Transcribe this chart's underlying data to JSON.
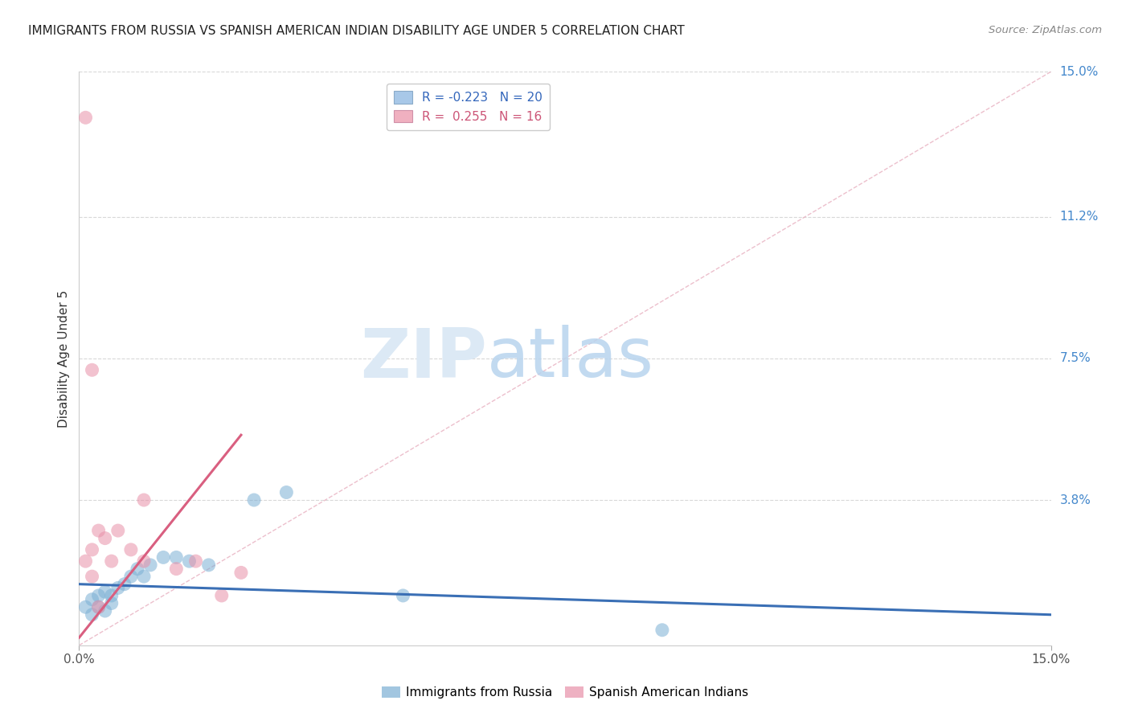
{
  "title": "IMMIGRANTS FROM RUSSIA VS SPANISH AMERICAN INDIAN DISABILITY AGE UNDER 5 CORRELATION CHART",
  "source": "Source: ZipAtlas.com",
  "ylabel": "Disability Age Under 5",
  "xlim": [
    0.0,
    0.15
  ],
  "ylim": [
    0.0,
    0.15
  ],
  "ytick_labels_right": [
    "15.0%",
    "11.2%",
    "7.5%",
    "3.8%"
  ],
  "ytick_positions_right": [
    0.15,
    0.112,
    0.075,
    0.038
  ],
  "blue_scatter_x": [
    0.001,
    0.002,
    0.002,
    0.003,
    0.003,
    0.004,
    0.004,
    0.005,
    0.005,
    0.006,
    0.007,
    0.008,
    0.009,
    0.01,
    0.011,
    0.013,
    0.015,
    0.017,
    0.02,
    0.027,
    0.05,
    0.09,
    0.032
  ],
  "blue_scatter_y": [
    0.01,
    0.008,
    0.012,
    0.01,
    0.013,
    0.009,
    0.014,
    0.011,
    0.013,
    0.015,
    0.016,
    0.018,
    0.02,
    0.018,
    0.021,
    0.023,
    0.023,
    0.022,
    0.021,
    0.038,
    0.013,
    0.004,
    0.04
  ],
  "pink_scatter_x": [
    0.001,
    0.001,
    0.002,
    0.002,
    0.003,
    0.003,
    0.004,
    0.005,
    0.006,
    0.008,
    0.01,
    0.01,
    0.015,
    0.018,
    0.022,
    0.025
  ],
  "pink_scatter_y": [
    0.138,
    0.022,
    0.025,
    0.018,
    0.03,
    0.01,
    0.028,
    0.022,
    0.03,
    0.025,
    0.038,
    0.022,
    0.02,
    0.022,
    0.013,
    0.019
  ],
  "pink_medium_x": [
    0.002
  ],
  "pink_medium_y": [
    0.072
  ],
  "blue_line_x": [
    0.0,
    0.15
  ],
  "blue_line_y": [
    0.016,
    0.008
  ],
  "pink_line_x": [
    0.0,
    0.025
  ],
  "pink_line_y": [
    0.002,
    0.055
  ],
  "diagonal_line_x": [
    0.0,
    0.15
  ],
  "diagonal_line_y": [
    0.0,
    0.15
  ],
  "blue_color": "#7bafd4",
  "pink_color": "#e890a8",
  "blue_line_color": "#3a6fb5",
  "pink_line_color": "#d95f80",
  "diagonal_color": "#c8c8c8",
  "grid_color": "#d8d8d8",
  "bottom_legend": [
    "Immigrants from Russia",
    "Spanish American Indians"
  ]
}
